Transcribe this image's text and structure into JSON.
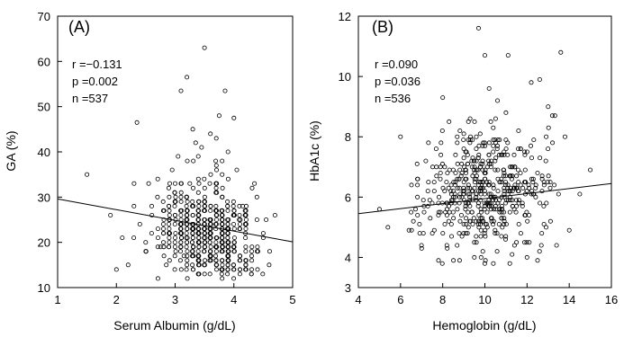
{
  "chart_data": [
    {
      "type": "scatter",
      "panel_label": "(A)",
      "xlabel": "Serum Albumin (g/dL)",
      "ylabel": "GA (%)",
      "xlim": [
        1,
        5
      ],
      "ylim": [
        10,
        70
      ],
      "xticks": [
        1,
        2,
        3,
        4,
        5
      ],
      "yticks": [
        10,
        20,
        30,
        40,
        50,
        60,
        70
      ],
      "stats": [
        "r =−0.131",
        "p =0.002",
        "n =537"
      ],
      "n_points": 537,
      "regression": {
        "x": [
          1,
          5
        ],
        "y": [
          29.6,
          20.1
        ]
      },
      "points": [
        [
          1.5,
          35
        ],
        [
          1.9,
          26
        ],
        [
          2.0,
          14
        ],
        [
          2.1,
          21
        ],
        [
          2.2,
          15
        ],
        [
          2.3,
          28
        ],
        [
          2.35,
          46.5
        ],
        [
          2.4,
          24
        ],
        [
          2.5,
          18
        ],
        [
          2.55,
          33
        ],
        [
          2.6,
          22
        ],
        [
          2.7,
          30
        ],
        [
          2.75,
          19
        ],
        [
          2.8,
          27
        ],
        [
          2.9,
          25
        ],
        [
          2.95,
          36
        ],
        [
          3.0,
          21
        ],
        [
          3.05,
          39
        ],
        [
          3.1,
          53.5
        ],
        [
          3.15,
          17
        ],
        [
          3.2,
          56.5
        ],
        [
          3.3,
          45
        ],
        [
          3.5,
          63
        ],
        [
          3.75,
          48
        ],
        [
          3.85,
          53.5
        ],
        [
          3.9,
          40
        ],
        [
          4.0,
          47.5
        ],
        [
          4.05,
          36
        ],
        [
          4.1,
          23
        ],
        [
          4.15,
          28
        ],
        [
          4.3,
          13
        ],
        [
          4.35,
          33
        ],
        [
          4.6,
          15
        ],
        [
          4.7,
          26
        ],
        [
          4.2,
          16
        ],
        [
          3.35,
          42
        ],
        [
          3.45,
          41
        ],
        [
          3.6,
          44
        ],
        [
          3.7,
          43
        ],
        [
          3.8,
          38
        ],
        [
          3.25,
          33
        ],
        [
          4.4,
          19
        ],
        [
          4.5,
          22
        ],
        [
          4.55,
          25
        ],
        [
          2.85,
          15
        ]
      ]
    },
    {
      "type": "scatter",
      "panel_label": "(B)",
      "xlabel": "Hemoglobin (g/dL)",
      "ylabel": "HbA1c (%)",
      "xlim": [
        4,
        16
      ],
      "ylim": [
        3,
        12
      ],
      "xticks": [
        4,
        6,
        8,
        10,
        12,
        14,
        16
      ],
      "yticks": [
        3,
        4,
        6,
        8,
        10,
        12
      ],
      "stats": [
        "r =0.090",
        "p =0.036",
        "n =536"
      ],
      "n_points": 536,
      "regression": {
        "x": [
          4,
          16
        ],
        "y": [
          5.45,
          6.45
        ]
      },
      "points": [
        [
          5.0,
          5.6
        ],
        [
          5.4,
          5.0
        ],
        [
          6.0,
          8.0
        ],
        [
          6.4,
          4.9
        ],
        [
          6.8,
          6.4
        ],
        [
          7.0,
          4.3
        ],
        [
          7.2,
          7.2
        ],
        [
          7.5,
          5.8
        ],
        [
          7.8,
          3.9
        ],
        [
          8.0,
          9.3
        ],
        [
          8.2,
          4.4
        ],
        [
          8.5,
          6.9
        ],
        [
          8.8,
          3.9
        ],
        [
          9.0,
          5.1
        ],
        [
          9.3,
          8.6
        ],
        [
          9.5,
          4.0
        ],
        [
          9.7,
          11.6
        ],
        [
          9.9,
          6.3
        ],
        [
          10.0,
          10.7
        ],
        [
          10.2,
          9.6
        ],
        [
          10.4,
          3.8
        ],
        [
          10.6,
          9.2
        ],
        [
          10.8,
          5.5
        ],
        [
          11.0,
          8.8
        ],
        [
          11.1,
          10.7
        ],
        [
          11.3,
          5.9
        ],
        [
          11.5,
          4.5
        ],
        [
          11.7,
          7.6
        ],
        [
          12.0,
          4.0
        ],
        [
          12.2,
          9.8
        ],
        [
          12.4,
          6.3
        ],
        [
          12.6,
          9.9
        ],
        [
          12.8,
          5.1
        ],
        [
          13.0,
          9.0
        ],
        [
          13.2,
          8.7
        ],
        [
          13.4,
          4.4
        ],
        [
          13.6,
          10.8
        ],
        [
          13.8,
          8.0
        ],
        [
          14.0,
          4.9
        ],
        [
          14.5,
          6.1
        ],
        [
          15.0,
          6.9
        ],
        [
          12.7,
          4.8
        ],
        [
          13.1,
          6.5
        ],
        [
          8.3,
          8.5
        ],
        [
          7.6,
          4.9
        ]
      ]
    }
  ]
}
